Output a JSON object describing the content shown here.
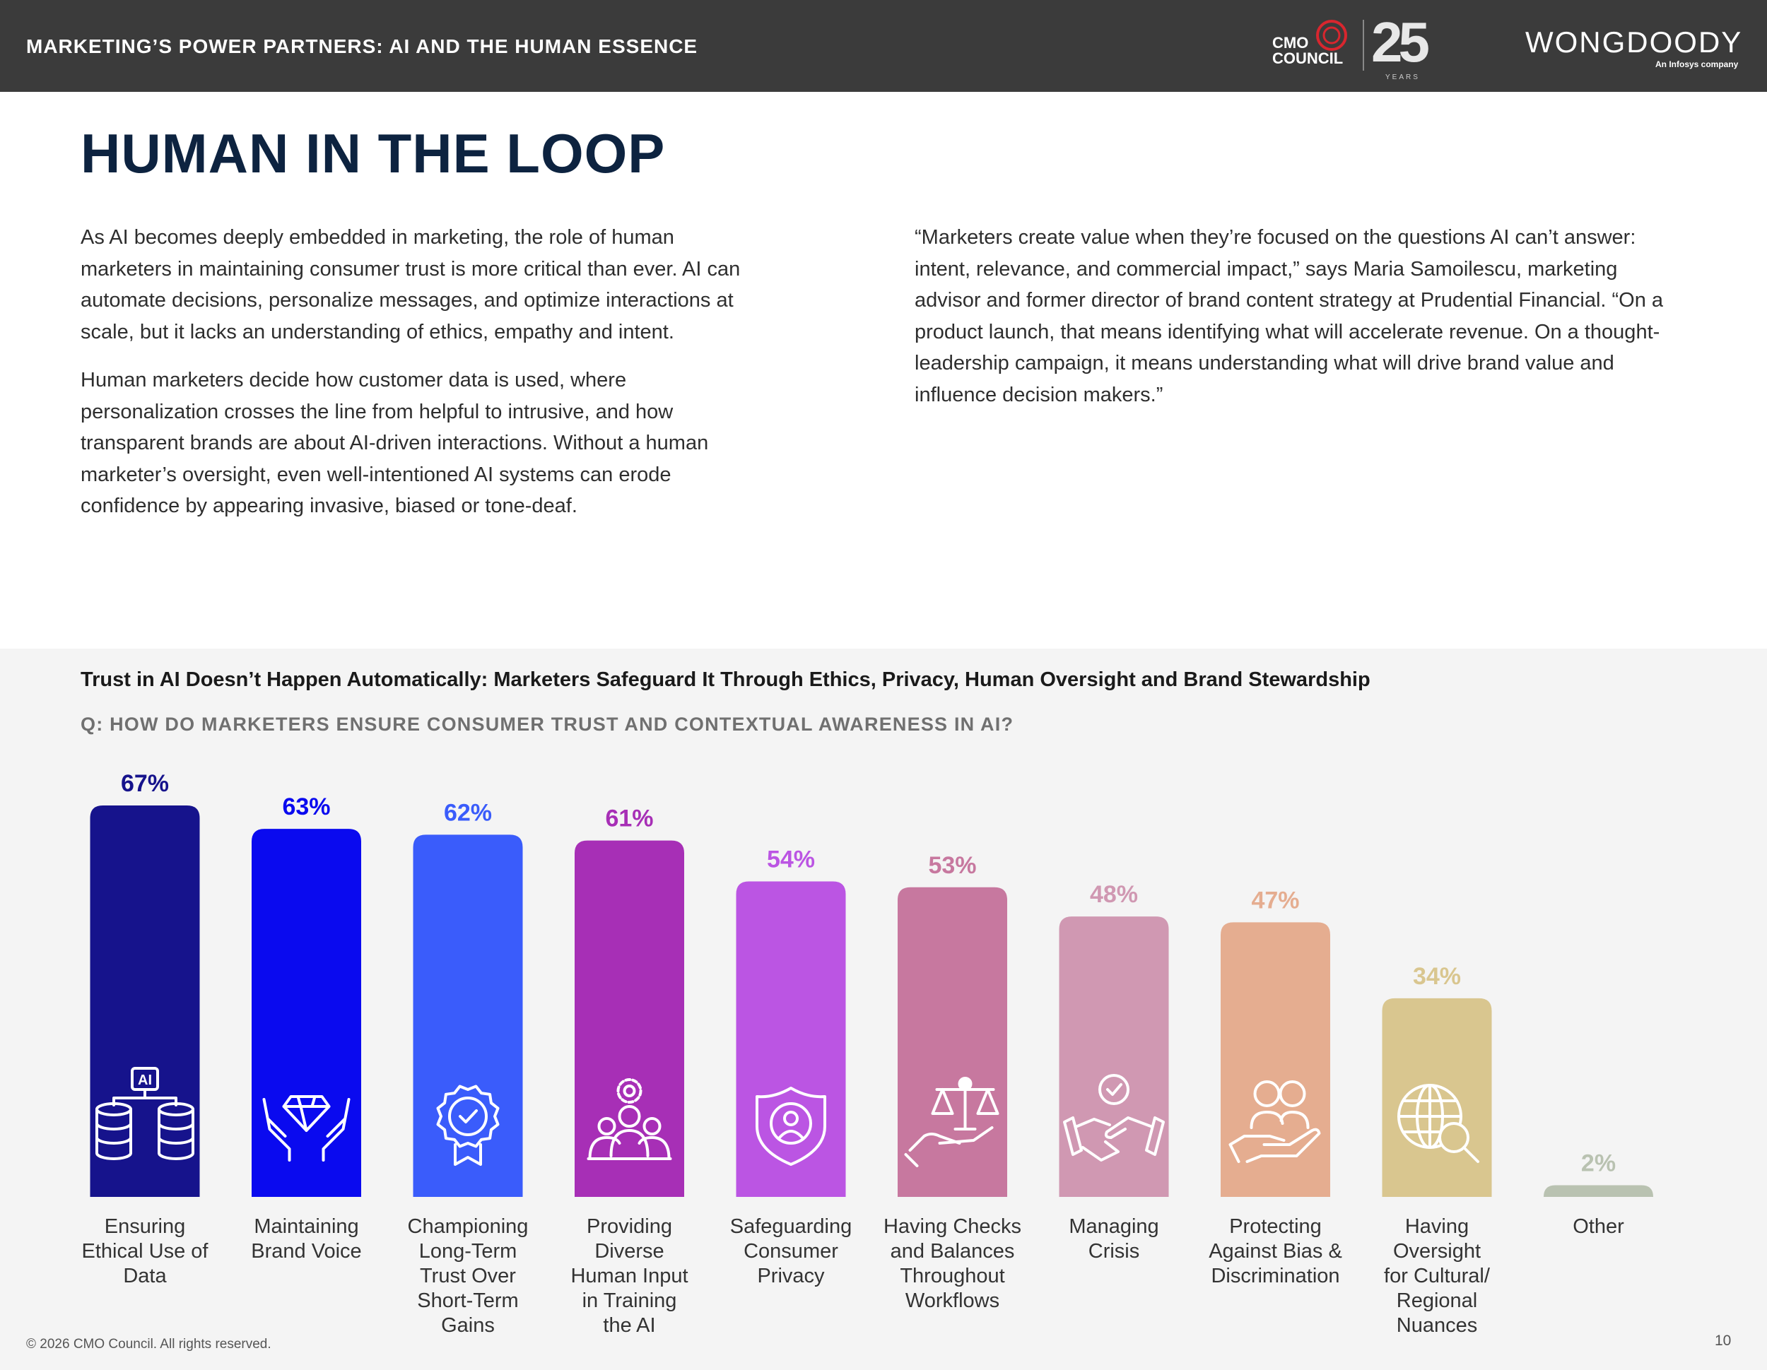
{
  "header": {
    "title": "MARKETING’S POWER PARTNERS: AI AND THE HUMAN ESSENCE",
    "cmo_logo_text": "CMO COUNCIL",
    "cmo_logo_anniversary": "25",
    "cmo_logo_years": "YEARS",
    "partner_logo": "WONGDOODY",
    "partner_sub": "An Infosys company"
  },
  "headline": "HUMAN IN THE LOOP",
  "body": {
    "left_p1": "As AI becomes deeply embedded in marketing, the role of human marketers in maintaining consumer trust is more critical than ever. AI can automate decisions, personalize messages, and optimize interactions at scale, but it lacks an understanding of ethics, empathy and intent.",
    "left_p2": "Human marketers decide how customer data is used, where personalization crosses the line from helpful to intrusive, and how transparent brands are about AI-driven interactions. Without a human marketer’s oversight, even well-intentioned AI systems can erode confidence by appearing invasive, biased or tone-deaf.",
    "right_quote": "“Marketers create value when they’re focused on the questions AI can’t answer: intent, relevance, and commercial impact,” says Maria Samoilescu, marketing advisor and former director of brand content strategy at Prudential Financial. “On a product launch, that means identifying what will accelerate revenue. On a thought-leadership campaign, it means understanding what will drive brand value and influence decision makers.”"
  },
  "chart_data": {
    "type": "bar",
    "title": "Trust in AI Doesn’t Happen Automatically: Marketers Safeguard It Through Ethics, Privacy, Human Oversight and Brand Stewardship",
    "question": "Q: HOW DO MARKETERS ENSURE CONSUMER TRUST AND CONTEXTUAL AWARENESS IN AI?",
    "categories": [
      "Ensuring Ethical Use of Data",
      "Maintaining Brand Voice",
      "Championing Long-Term Trust Over Short-Term Gains",
      "Providing Diverse Human Input in Training the AI",
      "Safeguarding Consumer Privacy",
      "Having Checks and Balances Throughout Workflows",
      "Managing Crisis",
      "Protecting Against Bias & Discrimination",
      "Having Oversight for Cultural/ Regional Nuances",
      "Other"
    ],
    "category_lines": [
      [
        "Ensuring",
        "Ethical Use of",
        "Data"
      ],
      [
        "Maintaining",
        "Brand Voice"
      ],
      [
        "Championing",
        "Long-Term",
        "Trust Over",
        "Short-Term",
        "Gains"
      ],
      [
        "Providing",
        "Diverse",
        "Human Input",
        "in Training",
        "the AI"
      ],
      [
        "Safeguarding",
        "Consumer",
        "Privacy"
      ],
      [
        "Having Checks",
        "and Balances",
        "Throughout",
        "Workflows"
      ],
      [
        "Managing",
        "Crisis"
      ],
      [
        "Protecting",
        "Against Bias &",
        "Discrimination"
      ],
      [
        "Having",
        "Oversight",
        "for Cultural/",
        "Regional",
        "Nuances"
      ],
      [
        "Other"
      ]
    ],
    "values": [
      67,
      63,
      62,
      61,
      54,
      53,
      48,
      47,
      34,
      2
    ],
    "value_labels": [
      "67%",
      "63%",
      "62%",
      "61%",
      "54%",
      "53%",
      "48%",
      "47%",
      "34%",
      "2%"
    ],
    "colors": [
      "#16138c",
      "#0a0aef",
      "#3a5cfb",
      "#a72fb6",
      "#bb55e3",
      "#c7789f",
      "#d098b2",
      "#e5ad90",
      "#d9c68f",
      "#b9c2b1"
    ],
    "label_colors": [
      "#16138c",
      "#0a0aef",
      "#3a5cfb",
      "#a72fb6",
      "#bb55e3",
      "#c7789f",
      "#d098b2",
      "#e5ad90",
      "#d9c68f",
      "#b9c2b1"
    ],
    "icons": [
      "ai-data-icon",
      "hands-diamond-icon",
      "award-badge-icon",
      "diverse-people-icon",
      "shield-user-icon",
      "scales-hand-icon",
      "handshake-check-icon",
      "hand-people-icon",
      "globe-search-icon",
      ""
    ],
    "ylim": [
      0,
      67
    ],
    "xlabel": "",
    "ylabel": "",
    "grid": false,
    "legend": false
  },
  "footer": {
    "copyright": "© 2026 CMO Council. All rights reserved.",
    "page": "10"
  }
}
